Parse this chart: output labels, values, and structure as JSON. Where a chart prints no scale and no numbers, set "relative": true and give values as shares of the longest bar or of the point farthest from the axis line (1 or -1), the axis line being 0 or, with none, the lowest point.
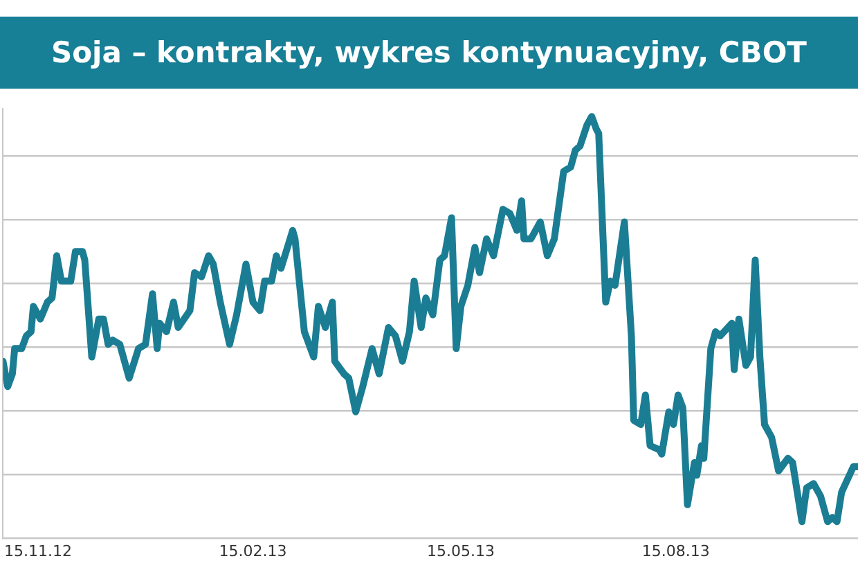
{
  "chart_data": {
    "type": "line",
    "title": "Soja – kontrakty, wykres kontynuacyjny, CBOT",
    "relative": true,
    "grid": "y",
    "legend": false,
    "marker": "none",
    "line_style": "solid",
    "xlim": [
      "2012-10-31",
      "2013-11-01"
    ],
    "xticks": [
      {
        "value": "2012-11-15",
        "label": "15.11.12"
      },
      {
        "value": "2013-02-15",
        "label": "15.02.13"
      },
      {
        "value": "2013-05-15",
        "label": "15.05.13"
      },
      {
        "value": "2013-08-15",
        "label": "15.08.13"
      }
    ],
    "x": [
      "2012-10-31",
      "2012-11-02",
      "2012-11-04",
      "2012-11-05",
      "2012-11-08",
      "2012-11-10",
      "2012-11-12",
      "2012-11-13",
      "2012-11-16",
      "2012-11-19",
      "2012-11-21",
      "2012-11-23",
      "2012-11-25",
      "2012-11-29",
      "2012-12-01",
      "2012-12-04",
      "2012-12-05",
      "2012-12-08",
      "2012-12-11",
      "2012-12-13",
      "2012-12-15",
      "2012-12-17",
      "2012-12-20",
      "2012-12-24",
      "2012-12-28",
      "2012-12-31",
      "2013-01-03",
      "2013-01-05",
      "2013-01-06",
      "2013-01-09",
      "2013-01-12",
      "2013-01-14",
      "2013-01-19",
      "2013-01-21",
      "2013-01-24",
      "2013-01-27",
      "2013-01-29",
      "2013-02-01",
      "2013-02-05",
      "2013-02-08",
      "2013-02-12",
      "2013-02-15",
      "2013-02-18",
      "2013-02-20",
      "2013-02-23",
      "2013-02-25",
      "2013-02-27",
      "2013-03-04",
      "2013-03-05",
      "2013-03-09",
      "2013-03-13",
      "2013-03-15",
      "2013-03-18",
      "2013-03-21",
      "2013-03-22",
      "2013-03-26",
      "2013-03-28",
      "2013-03-31",
      "2013-04-03",
      "2013-04-07",
      "2013-04-10",
      "2013-04-14",
      "2013-04-17",
      "2013-04-20",
      "2013-04-23",
      "2013-04-25",
      "2013-04-28",
      "2013-04-30",
      "2013-05-03",
      "2013-05-06",
      "2013-05-08",
      "2013-05-11",
      "2013-05-13",
      "2013-05-15",
      "2013-05-18",
      "2013-05-21",
      "2013-05-23",
      "2013-05-26",
      "2013-05-29",
      "2013-06-02",
      "2013-06-05",
      "2013-06-08",
      "2013-06-10",
      "2013-06-11",
      "2013-06-14",
      "2013-06-18",
      "2013-06-21",
      "2013-06-24",
      "2013-06-28",
      "2013-07-01",
      "2013-07-03",
      "2013-07-05",
      "2013-07-08",
      "2013-07-10",
      "2013-07-12",
      "2013-07-13",
      "2013-07-16",
      "2013-07-18",
      "2013-07-20",
      "2013-07-24",
      "2013-07-27",
      "2013-07-28",
      "2013-07-31",
      "2013-08-02",
      "2013-08-04",
      "2013-08-08",
      "2013-08-09",
      "2013-08-12",
      "2013-08-14",
      "2013-08-16",
      "2013-08-18",
      "2013-08-20",
      "2013-08-23",
      "2013-08-24",
      "2013-08-26",
      "2013-08-27",
      "2013-08-30",
      "2013-09-01",
      "2013-09-03",
      "2013-09-08",
      "2013-09-09",
      "2013-09-11",
      "2013-09-14",
      "2013-09-16",
      "2013-09-18",
      "2013-09-20",
      "2013-09-22",
      "2013-09-25",
      "2013-09-28",
      "2013-10-02",
      "2013-10-04",
      "2013-10-08",
      "2013-10-10",
      "2013-10-13",
      "2013-10-16",
      "2013-10-19",
      "2013-10-21",
      "2013-10-23",
      "2013-10-25",
      "2013-10-30",
      "2013-11-01"
    ],
    "series": [
      {
        "color": "#1b7d93",
        "values": [
          0.42,
          0.36,
          0.39,
          0.45,
          0.45,
          0.48,
          0.49,
          0.55,
          0.52,
          0.56,
          0.57,
          0.67,
          0.61,
          0.61,
          0.68,
          0.68,
          0.66,
          0.43,
          0.52,
          0.52,
          0.46,
          0.47,
          0.46,
          0.38,
          0.45,
          0.46,
          0.58,
          0.45,
          0.51,
          0.49,
          0.56,
          0.5,
          0.54,
          0.63,
          0.62,
          0.67,
          0.65,
          0.56,
          0.46,
          0.53,
          0.65,
          0.56,
          0.54,
          0.61,
          0.61,
          0.67,
          0.64,
          0.73,
          0.71,
          0.49,
          0.43,
          0.55,
          0.5,
          0.56,
          0.42,
          0.39,
          0.38,
          0.3,
          0.36,
          0.45,
          0.39,
          0.5,
          0.48,
          0.42,
          0.49,
          0.61,
          0.5,
          0.57,
          0.53,
          0.66,
          0.67,
          0.76,
          0.45,
          0.55,
          0.6,
          0.69,
          0.63,
          0.71,
          0.67,
          0.78,
          0.77,
          0.73,
          0.8,
          0.71,
          0.71,
          0.75,
          0.67,
          0.71,
          0.87,
          0.88,
          0.92,
          0.93,
          0.98,
          1,
          0.97,
          0.96,
          0.56,
          0.61,
          0.6,
          0.75,
          0.48,
          0.28,
          0.27,
          0.34,
          0.22,
          0.21,
          0.2,
          0.3,
          0.27,
          0.34,
          0.31,
          0.08,
          0.18,
          0.15,
          0.22,
          0.19,
          0.45,
          0.49,
          0.48,
          0.51,
          0.4,
          0.52,
          0.41,
          0.43,
          0.66,
          0.43,
          0.27,
          0.24,
          0.16,
          0.19,
          0.18,
          0.04,
          0.12,
          0.13,
          0.1,
          0.04,
          0.05,
          0.04,
          0.11,
          0.17,
          0.17
        ]
      }
    ]
  }
}
